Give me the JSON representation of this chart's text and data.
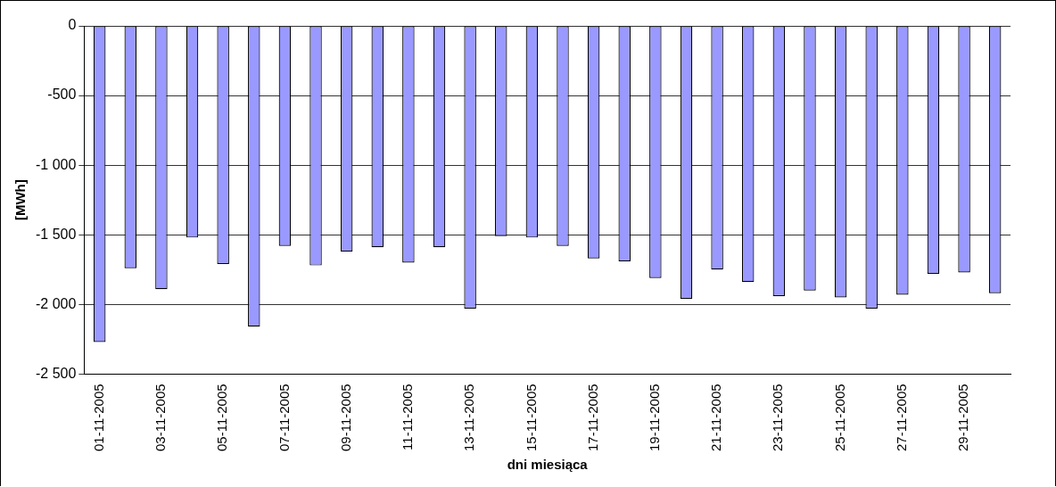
{
  "chart_data": {
    "type": "bar",
    "xlabel": "dni miesiąca",
    "ylabel": "[MWh]",
    "categories": [
      "01-11-2005",
      null,
      "03-11-2005",
      null,
      "05-11-2005",
      null,
      "07-11-2005",
      null,
      "09-11-2005",
      null,
      "11-11-2005",
      null,
      "13-11-2005",
      null,
      "15-11-2005",
      null,
      "17-11-2005",
      null,
      "19-11-2005",
      null,
      "21-11-2005",
      null,
      "23-11-2005",
      null,
      "25-11-2005",
      null,
      "27-11-2005",
      null,
      "29-11-2005",
      null
    ],
    "values": [
      -2270,
      -1740,
      -1890,
      -1520,
      -1710,
      -2160,
      -1580,
      -1720,
      -1620,
      -1590,
      -1700,
      -1590,
      -2030,
      -1510,
      -1520,
      -1580,
      -1670,
      -1690,
      -1810,
      -1960,
      -1750,
      -1840,
      -1940,
      -1900,
      -1950,
      -2030,
      -1930,
      -1780,
      -1770,
      -1920
    ],
    "color": "#9999ff",
    "ylim": [
      -2500,
      0
    ],
    "yticks": [
      {
        "value": -2500,
        "label": "-2 500"
      },
      {
        "value": -2000,
        "label": "-2 000"
      },
      {
        "value": -1500,
        "label": "-1 500"
      },
      {
        "value": -1000,
        "label": "-1 000"
      },
      -500,
      0
    ],
    "grid": "y"
  }
}
